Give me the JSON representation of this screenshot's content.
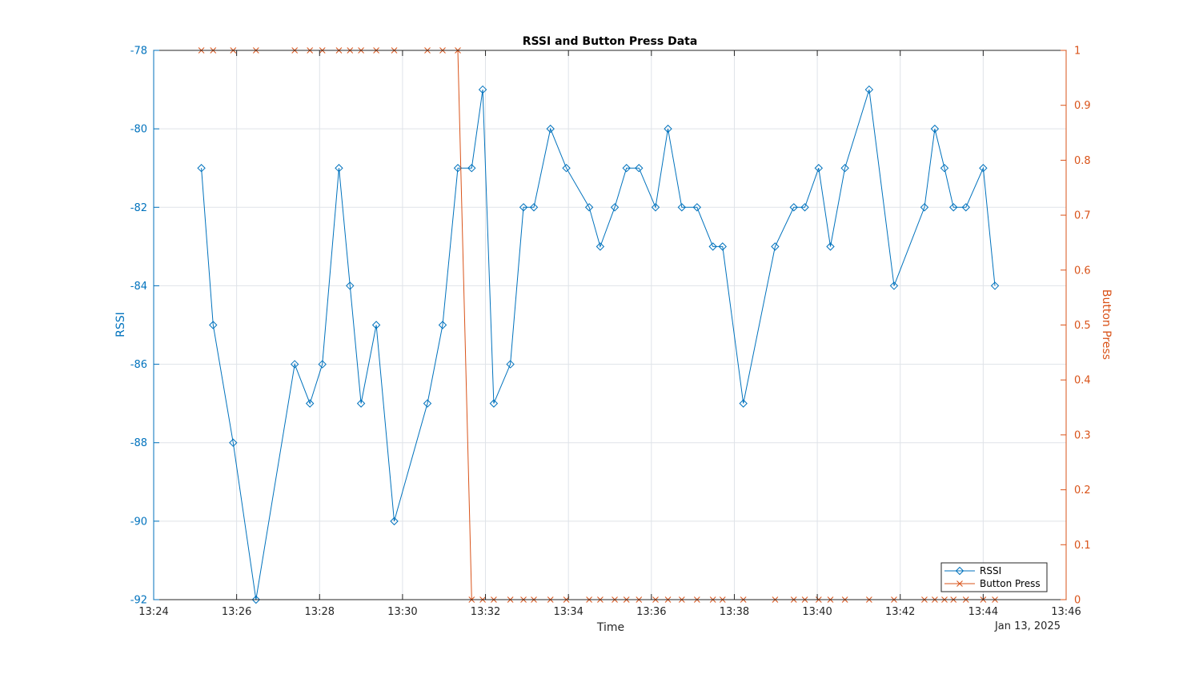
{
  "chart_data": {
    "type": "line",
    "title": "RSSI and Button Press Data",
    "xlabel": "Time",
    "date_label": "Jan 13, 2025",
    "x_ticks": [
      "13:24",
      "13:26",
      "13:28",
      "13:30",
      "13:32",
      "13:34",
      "13:36",
      "13:38",
      "13:40",
      "13:42",
      "13:44",
      "13:46"
    ],
    "xlim": [
      "13:24",
      "13:46"
    ],
    "grid": true,
    "legend_position": "bottom-right",
    "left_axis": {
      "label": "RSSI",
      "ylim": [
        -92,
        -78
      ],
      "ticks": [
        -78,
        -80,
        -82,
        -84,
        -86,
        -88,
        -90,
        -92
      ],
      "color": "#0072BD"
    },
    "right_axis": {
      "label": "Button Press",
      "ylim": [
        0,
        1
      ],
      "ticks": [
        0,
        0.1,
        0.2,
        0.3,
        0.4,
        0.5,
        0.6,
        0.7,
        0.8,
        0.9,
        1
      ],
      "color": "#D95319"
    },
    "series": [
      {
        "name": "RSSI",
        "axis": "left",
        "marker": "diamond",
        "color": "#0072BD",
        "points": [
          [
            "13:25:09",
            -81
          ],
          [
            "13:25:26",
            -85
          ],
          [
            "13:25:55",
            -88
          ],
          [
            "13:26:28",
            -92
          ],
          [
            "13:27:24",
            -86
          ],
          [
            "13:27:46",
            -87
          ],
          [
            "13:28:04",
            -86
          ],
          [
            "13:28:28",
            -81
          ],
          [
            "13:28:44",
            -84
          ],
          [
            "13:29:00",
            -87
          ],
          [
            "13:29:22",
            -85
          ],
          [
            "13:29:48",
            -90
          ],
          [
            "13:30:36",
            -87
          ],
          [
            "13:30:58",
            -85
          ],
          [
            "13:31:20",
            -81
          ],
          [
            "13:31:40",
            -81
          ],
          [
            "13:31:56",
            -79
          ],
          [
            "13:32:12",
            -87
          ],
          [
            "13:32:36",
            -86
          ],
          [
            "13:32:55",
            -82
          ],
          [
            "13:33:10",
            -82
          ],
          [
            "13:33:34",
            -80
          ],
          [
            "13:33:57",
            -81
          ],
          [
            "13:34:30",
            -82
          ],
          [
            "13:34:46",
            -83
          ],
          [
            "13:35:07",
            -82
          ],
          [
            "13:35:24",
            -81
          ],
          [
            "13:35:42",
            -81
          ],
          [
            "13:36:06",
            -82
          ],
          [
            "13:36:24",
            -80
          ],
          [
            "13:36:44",
            -82
          ],
          [
            "13:37:06",
            -82
          ],
          [
            "13:37:29",
            -83
          ],
          [
            "13:37:43",
            -83
          ],
          [
            "13:38:13",
            -87
          ],
          [
            "13:38:59",
            -83
          ],
          [
            "13:39:26",
            -82
          ],
          [
            "13:39:42",
            -82
          ],
          [
            "13:40:02",
            -81
          ],
          [
            "13:40:19",
            -83
          ],
          [
            "13:40:40",
            -81
          ],
          [
            "13:41:15",
            -79
          ],
          [
            "13:41:51",
            -84
          ],
          [
            "13:42:35",
            -82
          ],
          [
            "13:42:50",
            -80
          ],
          [
            "13:43:04",
            -81
          ],
          [
            "13:43:17",
            -82
          ],
          [
            "13:43:35",
            -82
          ],
          [
            "13:44:00",
            -81
          ],
          [
            "13:44:17",
            -84
          ]
        ]
      },
      {
        "name": "Button Press",
        "axis": "right",
        "marker": "x",
        "color": "#D95319",
        "points": [
          [
            "13:25:09",
            1
          ],
          [
            "13:25:26",
            1
          ],
          [
            "13:25:55",
            1
          ],
          [
            "13:26:28",
            1
          ],
          [
            "13:27:24",
            1
          ],
          [
            "13:27:46",
            1
          ],
          [
            "13:28:04",
            1
          ],
          [
            "13:28:28",
            1
          ],
          [
            "13:28:44",
            1
          ],
          [
            "13:29:00",
            1
          ],
          [
            "13:29:22",
            1
          ],
          [
            "13:29:48",
            1
          ],
          [
            "13:30:36",
            1
          ],
          [
            "13:30:58",
            1
          ],
          [
            "13:31:20",
            1
          ],
          [
            "13:31:40",
            0
          ],
          [
            "13:31:56",
            0
          ],
          [
            "13:32:12",
            0
          ],
          [
            "13:32:36",
            0
          ],
          [
            "13:32:55",
            0
          ],
          [
            "13:33:10",
            0
          ],
          [
            "13:33:34",
            0
          ],
          [
            "13:33:57",
            0
          ],
          [
            "13:34:30",
            0
          ],
          [
            "13:34:46",
            0
          ],
          [
            "13:35:07",
            0
          ],
          [
            "13:35:24",
            0
          ],
          [
            "13:35:42",
            0
          ],
          [
            "13:36:06",
            0
          ],
          [
            "13:36:24",
            0
          ],
          [
            "13:36:44",
            0
          ],
          [
            "13:37:06",
            0
          ],
          [
            "13:37:29",
            0
          ],
          [
            "13:37:43",
            0
          ],
          [
            "13:38:13",
            0
          ],
          [
            "13:38:59",
            0
          ],
          [
            "13:39:26",
            0
          ],
          [
            "13:39:42",
            0
          ],
          [
            "13:40:02",
            0
          ],
          [
            "13:40:19",
            0
          ],
          [
            "13:40:40",
            0
          ],
          [
            "13:41:15",
            0
          ],
          [
            "13:41:51",
            0
          ],
          [
            "13:42:35",
            0
          ],
          [
            "13:42:50",
            0
          ],
          [
            "13:43:04",
            0
          ],
          [
            "13:43:17",
            0
          ],
          [
            "13:43:35",
            0
          ],
          [
            "13:44:00",
            0
          ],
          [
            "13:44:17",
            0
          ]
        ]
      }
    ]
  }
}
